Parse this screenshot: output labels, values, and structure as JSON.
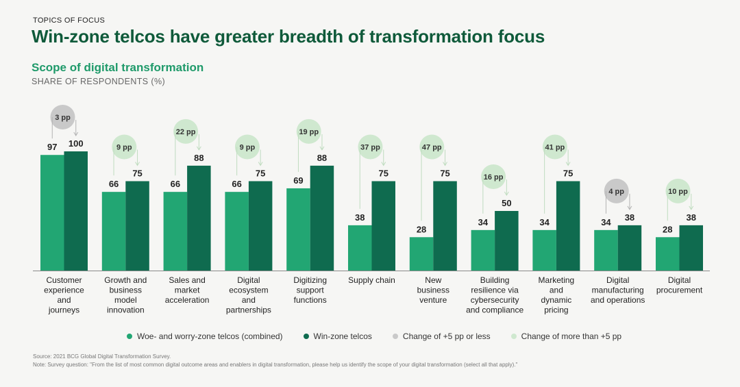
{
  "header": {
    "eyebrow": "TOPICS OF FOCUS",
    "title": "Win-zone telcos have greater breadth of transformation focus",
    "subtitle": "Scope of digital transformation",
    "units": "SHARE OF RESPONDENTS (%)"
  },
  "colors": {
    "woe": "#22a673",
    "win": "#0f6b4f",
    "change_small": "#c9c9c9",
    "change_large": "#cfe8cf"
  },
  "legend": [
    {
      "label": "Woe- and worry-zone telcos (combined)",
      "color": "#22a673"
    },
    {
      "label": "Win-zone telcos",
      "color": "#0f6b4f"
    },
    {
      "label": "Change of +5 pp or less",
      "color": "#c9c9c9"
    },
    {
      "label": "Change of more than +5 pp",
      "color": "#cfe8cf"
    }
  ],
  "chart_data": {
    "type": "bar",
    "title": "Scope of digital transformation",
    "ylabel": "SHARE OF RESPONDENTS (%)",
    "ylim": [
      0,
      100
    ],
    "categories": [
      [
        "Customer",
        "experience",
        "and",
        "journeys"
      ],
      [
        "Growth and",
        "business",
        "model",
        "innovation"
      ],
      [
        "Sales and",
        "market",
        "acceleration"
      ],
      [
        "Digital",
        "ecosystem",
        "and",
        "partnerships"
      ],
      [
        "Digitizing",
        "support",
        "functions"
      ],
      [
        "Supply chain"
      ],
      [
        "New",
        "business",
        "venture"
      ],
      [
        "Building",
        "resilience via",
        "cybersecurity",
        "and compliance"
      ],
      [
        "Marketing",
        "and",
        "dynamic",
        "pricing"
      ],
      [
        "Digital",
        "manufacturing",
        "and operations"
      ],
      [
        "Digital",
        "procurement"
      ]
    ],
    "series": [
      {
        "name": "Woe- and worry-zone telcos (combined)",
        "values": [
          97,
          66,
          66,
          66,
          69,
          38,
          28,
          34,
          34,
          34,
          28
        ]
      },
      {
        "name": "Win-zone telcos",
        "values": [
          100,
          75,
          88,
          75,
          88,
          75,
          75,
          50,
          75,
          38,
          38
        ]
      }
    ],
    "change_labels": [
      "3 pp",
      "9 pp",
      "22 pp",
      "9 pp",
      "19 pp",
      "37 pp",
      "47 pp",
      "16 pp",
      "41 pp",
      "4 pp",
      "10 pp"
    ],
    "change_small": [
      true,
      false,
      false,
      false,
      false,
      false,
      false,
      false,
      false,
      true,
      false
    ]
  },
  "footer": {
    "source": "Source: 2021 BCG Global Digital Transformation Survey.",
    "note": "Note: Survey question: \"From the list of most common digital outcome areas and enablers in digital transformation, please help us identify the scope of your digital transformation (select all that apply).\""
  }
}
